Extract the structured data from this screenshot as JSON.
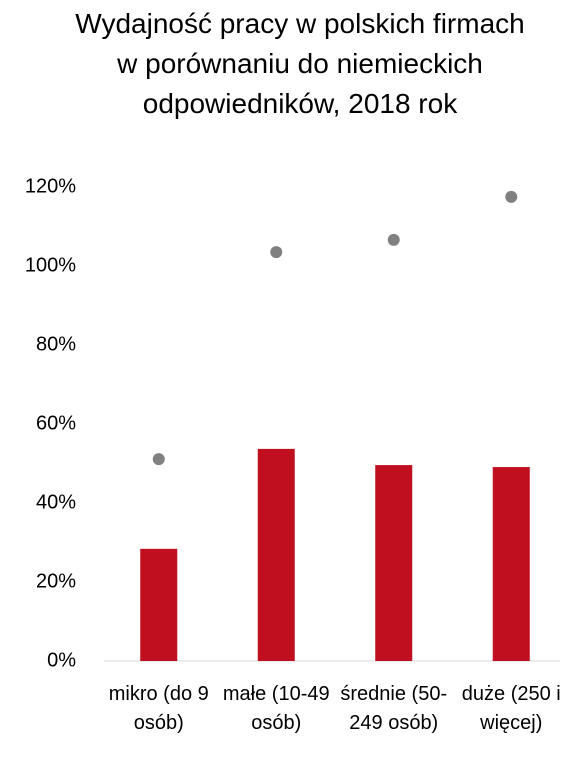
{
  "chart_data": {
    "type": "bar",
    "title": "Wydajność pracy w polskich firmach w porównaniu do niemieckich odpowiedników, 2018 rok",
    "categories": [
      "mikro (do 9 osób)",
      "małe (10-49 osób)",
      "średnie (50-249 osób)",
      "duże (250 i więcej)"
    ],
    "series": [
      {
        "type": "bar",
        "color": "#c00f1e",
        "values": [
          28.4,
          53.7,
          49.6,
          49.1
        ]
      },
      {
        "type": "scatter",
        "color": "#808080",
        "values": [
          51.1,
          103.5,
          106.6,
          117.5
        ]
      }
    ],
    "ylim": [
      0,
      120
    ],
    "yticks": [
      {
        "value": 0,
        "label": "0%"
      },
      {
        "value": 20,
        "label": "20%"
      },
      {
        "value": 40,
        "label": "40%"
      },
      {
        "value": 60,
        "label": "60%"
      },
      {
        "value": 80,
        "label": "80%"
      },
      {
        "value": 100,
        "label": "100%"
      },
      {
        "value": 120,
        "label": "120%"
      }
    ],
    "grid": false
  }
}
